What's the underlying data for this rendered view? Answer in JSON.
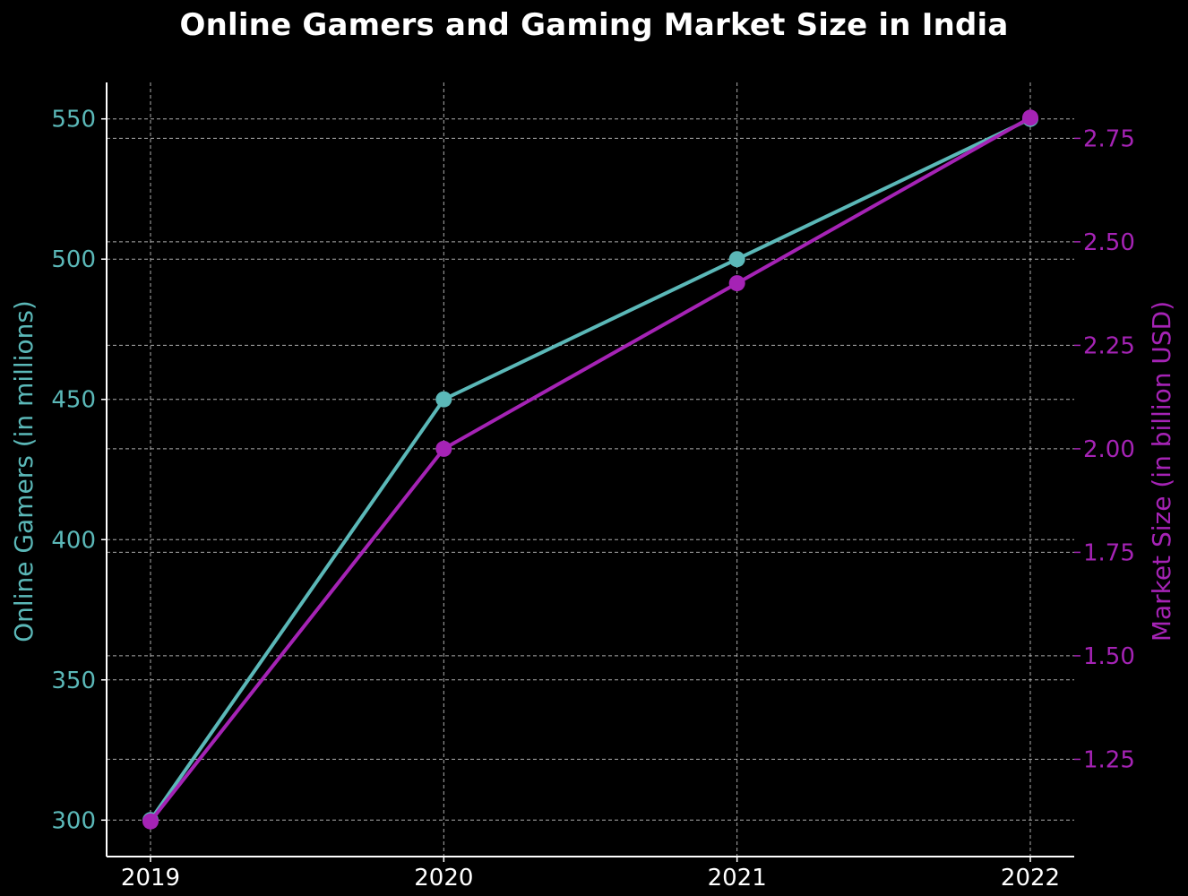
{
  "colors": {
    "background": "#000000",
    "gamers": "#5bb8b8",
    "market": "#a523b5",
    "axis": "#ffffff",
    "grid": "#cccccc"
  },
  "chart_data": {
    "type": "line",
    "title": "Online Gamers and Gaming Market Size in India",
    "x": [
      "2019",
      "2020",
      "2021",
      "2022"
    ],
    "grid": true,
    "series": [
      {
        "name": "Online Gamers",
        "axis": "left",
        "values": [
          300,
          450,
          500,
          550
        ]
      },
      {
        "name": "Market Size",
        "axis": "right",
        "values": [
          1.1,
          2.0,
          2.4,
          2.8
        ]
      }
    ],
    "left_axis": {
      "label": "Online Gamers (in millions)",
      "ylim": [
        287,
        563
      ],
      "ticks": [
        300,
        350,
        400,
        450,
        500,
        550
      ],
      "tick_labels": [
        "300",
        "350",
        "400",
        "450",
        "500",
        "550"
      ]
    },
    "right_axis": {
      "label": "Market Size (in billion USD)",
      "ylim": [
        1.015,
        2.885
      ],
      "ticks": [
        1.25,
        1.5,
        1.75,
        2.0,
        2.25,
        2.5,
        2.75
      ],
      "tick_labels": [
        "1.25",
        "1.50",
        "1.75",
        "2.00",
        "2.25",
        "2.50",
        "2.75"
      ]
    }
  }
}
